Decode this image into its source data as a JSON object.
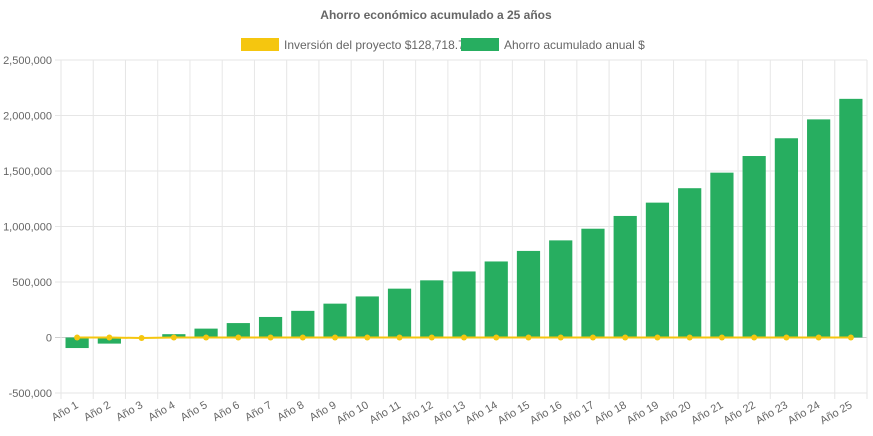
{
  "chart_data": {
    "type": "bar",
    "title": "Ahorro económico acumulado a 25 años",
    "categories": [
      "Año 1",
      "Año 2",
      "Año 3",
      "Año 4",
      "Año 5",
      "Año 6",
      "Año 7",
      "Año 8",
      "Año 9",
      "Año 10",
      "Año 11",
      "Año 12",
      "Año 13",
      "Año 14",
      "Año 15",
      "Año 16",
      "Año 17",
      "Año 18",
      "Año 19",
      "Año 20",
      "Año 21",
      "Año 22",
      "Año 23",
      "Año 24",
      "Año 25"
    ],
    "series": [
      {
        "name": "Inversión del proyecto $128,718.76",
        "kind": "line",
        "color": "#f5c60f",
        "values": [
          0,
          0,
          -5000,
          0,
          0,
          0,
          0,
          0,
          0,
          0,
          0,
          0,
          0,
          0,
          0,
          0,
          0,
          0,
          0,
          0,
          0,
          0,
          0,
          0,
          0
        ]
      },
      {
        "name": "Ahorro acumulado anual $",
        "kind": "bar",
        "color": "#27ae60",
        "values": [
          -95000,
          -55000,
          -5000,
          30000,
          80000,
          130000,
          185000,
          240000,
          305000,
          370000,
          440000,
          515000,
          595000,
          685000,
          780000,
          875000,
          980000,
          1095000,
          1215000,
          1345000,
          1485000,
          1635000,
          1795000,
          1965000,
          2150000
        ]
      }
    ],
    "ylim": [
      -500000,
      2500000
    ],
    "yticks": [
      "2,500,000",
      "2,000,000",
      "1,500,000",
      "1,000,000",
      "500,000",
      "0",
      "-500,000"
    ],
    "ytick_values": [
      2500000,
      2000000,
      1500000,
      1000000,
      500000,
      0,
      -500000
    ],
    "grid": true,
    "legend": "top-center"
  }
}
